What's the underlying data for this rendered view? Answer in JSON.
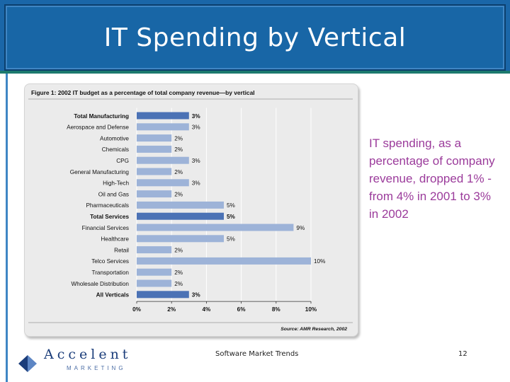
{
  "slide": {
    "title": "IT Spending by Vertical",
    "side_text": "IT spending, as a percentage of company revenue, dropped 1% - from 4% in 2001 to 3% in 2002",
    "footer_center": "Software Market Trends",
    "page_number": "12"
  },
  "logo": {
    "word": "Accelent",
    "sub": "MARKETING"
  },
  "chart_data": {
    "type": "bar",
    "orientation": "horizontal",
    "title": "Figure 1: 2002 IT budget as a percentage of total company revenue—by vertical",
    "source": "Source: AMR Research, 2002",
    "categories": [
      "Total Manufacturing",
      "Aerospace and Defense",
      "Automotive",
      "Chemicals",
      "CPG",
      "General Manufacturing",
      "High-Tech",
      "Oil and Gas",
      "Pharmaceuticals",
      "Total Services",
      "Financial Services",
      "Healthcare",
      "Retail",
      "Telco Services",
      "Transportation",
      "Wholesale Distribution",
      "All Verticals"
    ],
    "values": [
      3,
      3,
      2,
      2,
      3,
      2,
      3,
      2,
      5,
      5,
      9,
      5,
      2,
      10,
      2,
      2,
      3
    ],
    "value_labels": [
      "3%",
      "3%",
      "2%",
      "2%",
      "3%",
      "2%",
      "3%",
      "2%",
      "5%",
      "5%",
      "9%",
      "5%",
      "2%",
      "10%",
      "2%",
      "2%",
      "3%"
    ],
    "emphasized": [
      true,
      false,
      false,
      false,
      false,
      false,
      false,
      false,
      false,
      true,
      false,
      false,
      false,
      false,
      false,
      false,
      true
    ],
    "x_ticks": [
      "0%",
      "2%",
      "4%",
      "6%",
      "8%",
      "10%"
    ],
    "xlim": [
      0,
      10
    ],
    "grid": true,
    "colors": {
      "bar": "#9db3d8",
      "bar_emphasized": "#4b72b5",
      "panel": "#ebebeb",
      "gridline": "#ffffff"
    }
  }
}
